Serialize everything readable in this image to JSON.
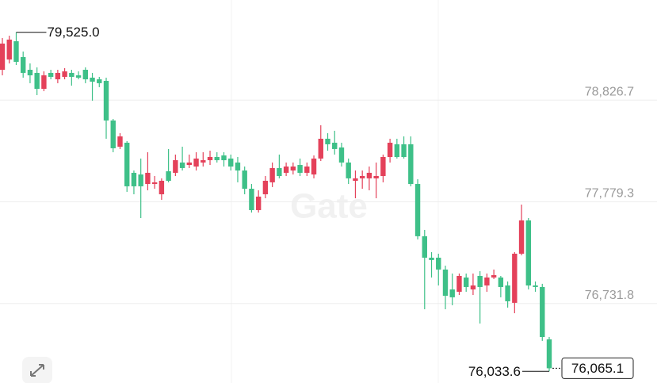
{
  "chart_data": {
    "type": "candlestick",
    "up_color": "#e4415a",
    "down_color": "#3ec088",
    "ylim": [
      75913.5,
      79857.8
    ],
    "yticks": [
      {
        "value": 76731.8,
        "label": "76,731.8"
      },
      {
        "value": 77779.3,
        "label": "77,779.3"
      },
      {
        "value": 78826.7,
        "label": "78,826.7"
      }
    ],
    "grid": true,
    "watermark": "Gate",
    "annotations": {
      "high": {
        "value": 79525,
        "label": "79,525.0"
      },
      "low": {
        "value": 76033.6,
        "label": "76,033.6"
      },
      "last": {
        "value": 76065.1,
        "label": "76,065.1"
      }
    },
    "values": [
      [
        79139,
        79466,
        79082,
        79409
      ],
      [
        79245,
        79490,
        79205,
        79450
      ],
      [
        79433,
        79525,
        79188,
        79221
      ],
      [
        79270,
        79327,
        79058,
        79107
      ],
      [
        79139,
        79205,
        79001,
        79082
      ],
      [
        79107,
        79164,
        78878,
        78943
      ],
      [
        78943,
        79123,
        78919,
        79082
      ],
      [
        79107,
        79139,
        79041,
        79066
      ],
      [
        79041,
        79139,
        79001,
        79107
      ],
      [
        79066,
        79156,
        79041,
        79123
      ],
      [
        79107,
        79139,
        78976,
        79066
      ],
      [
        79082,
        79123,
        79041,
        79058
      ],
      [
        79139,
        79164,
        79001,
        79041
      ],
      [
        79058,
        79107,
        78821,
        79017
      ],
      [
        79041,
        79066,
        78960,
        79001
      ],
      [
        79025,
        79058,
        78429,
        78617
      ],
      [
        78617,
        78633,
        78290,
        78331
      ],
      [
        78347,
        78486,
        78323,
        78453
      ],
      [
        78388,
        78405,
        77882,
        77939
      ],
      [
        78078,
        78102,
        77857,
        77939
      ],
      [
        78061,
        78225,
        77612,
        77939
      ],
      [
        77963,
        78290,
        77898,
        78078
      ],
      [
        77963,
        78045,
        77914,
        77980
      ],
      [
        77857,
        78021,
        77800,
        77996
      ],
      [
        78094,
        78323,
        77980,
        77996
      ],
      [
        78078,
        78266,
        78045,
        78208
      ],
      [
        78184,
        78347,
        78102,
        78127
      ],
      [
        78159,
        78266,
        78127,
        78184
      ],
      [
        78143,
        78290,
        78102,
        78225
      ],
      [
        78184,
        78290,
        78143,
        78208
      ],
      [
        78208,
        78306,
        78159,
        78241
      ],
      [
        78241,
        78290,
        78184,
        78208
      ],
      [
        78257,
        78290,
        78143,
        78208
      ],
      [
        78225,
        78266,
        78102,
        78143
      ],
      [
        78184,
        78241,
        77980,
        78102
      ],
      [
        78102,
        78143,
        77857,
        77914
      ],
      [
        77914,
        77963,
        77669,
        77694
      ],
      [
        77694,
        77898,
        77669,
        77833
      ],
      [
        77857,
        78045,
        77816,
        77996
      ],
      [
        77980,
        78184,
        77931,
        78127
      ],
      [
        78127,
        78266,
        78021,
        78045
      ],
      [
        78078,
        78184,
        78045,
        78143
      ],
      [
        78102,
        78184,
        78061,
        78143
      ],
      [
        78159,
        78225,
        78045,
        78078
      ],
      [
        78078,
        78184,
        78045,
        78143
      ],
      [
        78061,
        78257,
        78021,
        78225
      ],
      [
        78225,
        78568,
        78200,
        78429
      ],
      [
        78429,
        78486,
        78306,
        78372
      ],
      [
        78388,
        78511,
        78266,
        78323
      ],
      [
        78339,
        78388,
        78143,
        78184
      ],
      [
        78184,
        78225,
        77963,
        78021
      ],
      [
        77996,
        78102,
        77816,
        78021
      ],
      [
        78021,
        78102,
        77914,
        78045
      ],
      [
        78021,
        78143,
        77898,
        78078
      ],
      [
        78021,
        78184,
        77816,
        78045
      ],
      [
        78045,
        78266,
        77980,
        78241
      ],
      [
        78241,
        78429,
        78184,
        78388
      ],
      [
        78372,
        78429,
        78225,
        78241
      ],
      [
        78372,
        78453,
        78225,
        78241
      ],
      [
        78372,
        78453,
        77939,
        77963
      ],
      [
        77963,
        78012,
        77392,
        77425
      ],
      [
        77425,
        77490,
        76673,
        77204
      ],
      [
        77204,
        77261,
        77000,
        77180
      ],
      [
        77204,
        77245,
        76918,
        77082
      ],
      [
        77082,
        77122,
        76673,
        76812
      ],
      [
        76877,
        77041,
        76714,
        76796
      ],
      [
        76853,
        77041,
        76820,
        77016
      ],
      [
        77000,
        77041,
        76853,
        76902
      ],
      [
        76877,
        77041,
        76820,
        76918
      ],
      [
        77016,
        77065,
        76526,
        76902
      ],
      [
        76918,
        77041,
        76853,
        77000
      ],
      [
        77000,
        77082,
        76984,
        77024
      ],
      [
        77000,
        77016,
        76796,
        76902
      ],
      [
        76918,
        76959,
        76690,
        76755
      ],
      [
        76739,
        77261,
        76632,
        77245
      ],
      [
        77245,
        77751,
        77229,
        77588
      ],
      [
        77588,
        77612,
        76877,
        76918
      ],
      [
        76918,
        76959,
        76853,
        76902
      ],
      [
        76902,
        76935,
        76347,
        76387
      ],
      [
        76363,
        76387,
        76033.6,
        76065.1
      ]
    ]
  }
}
